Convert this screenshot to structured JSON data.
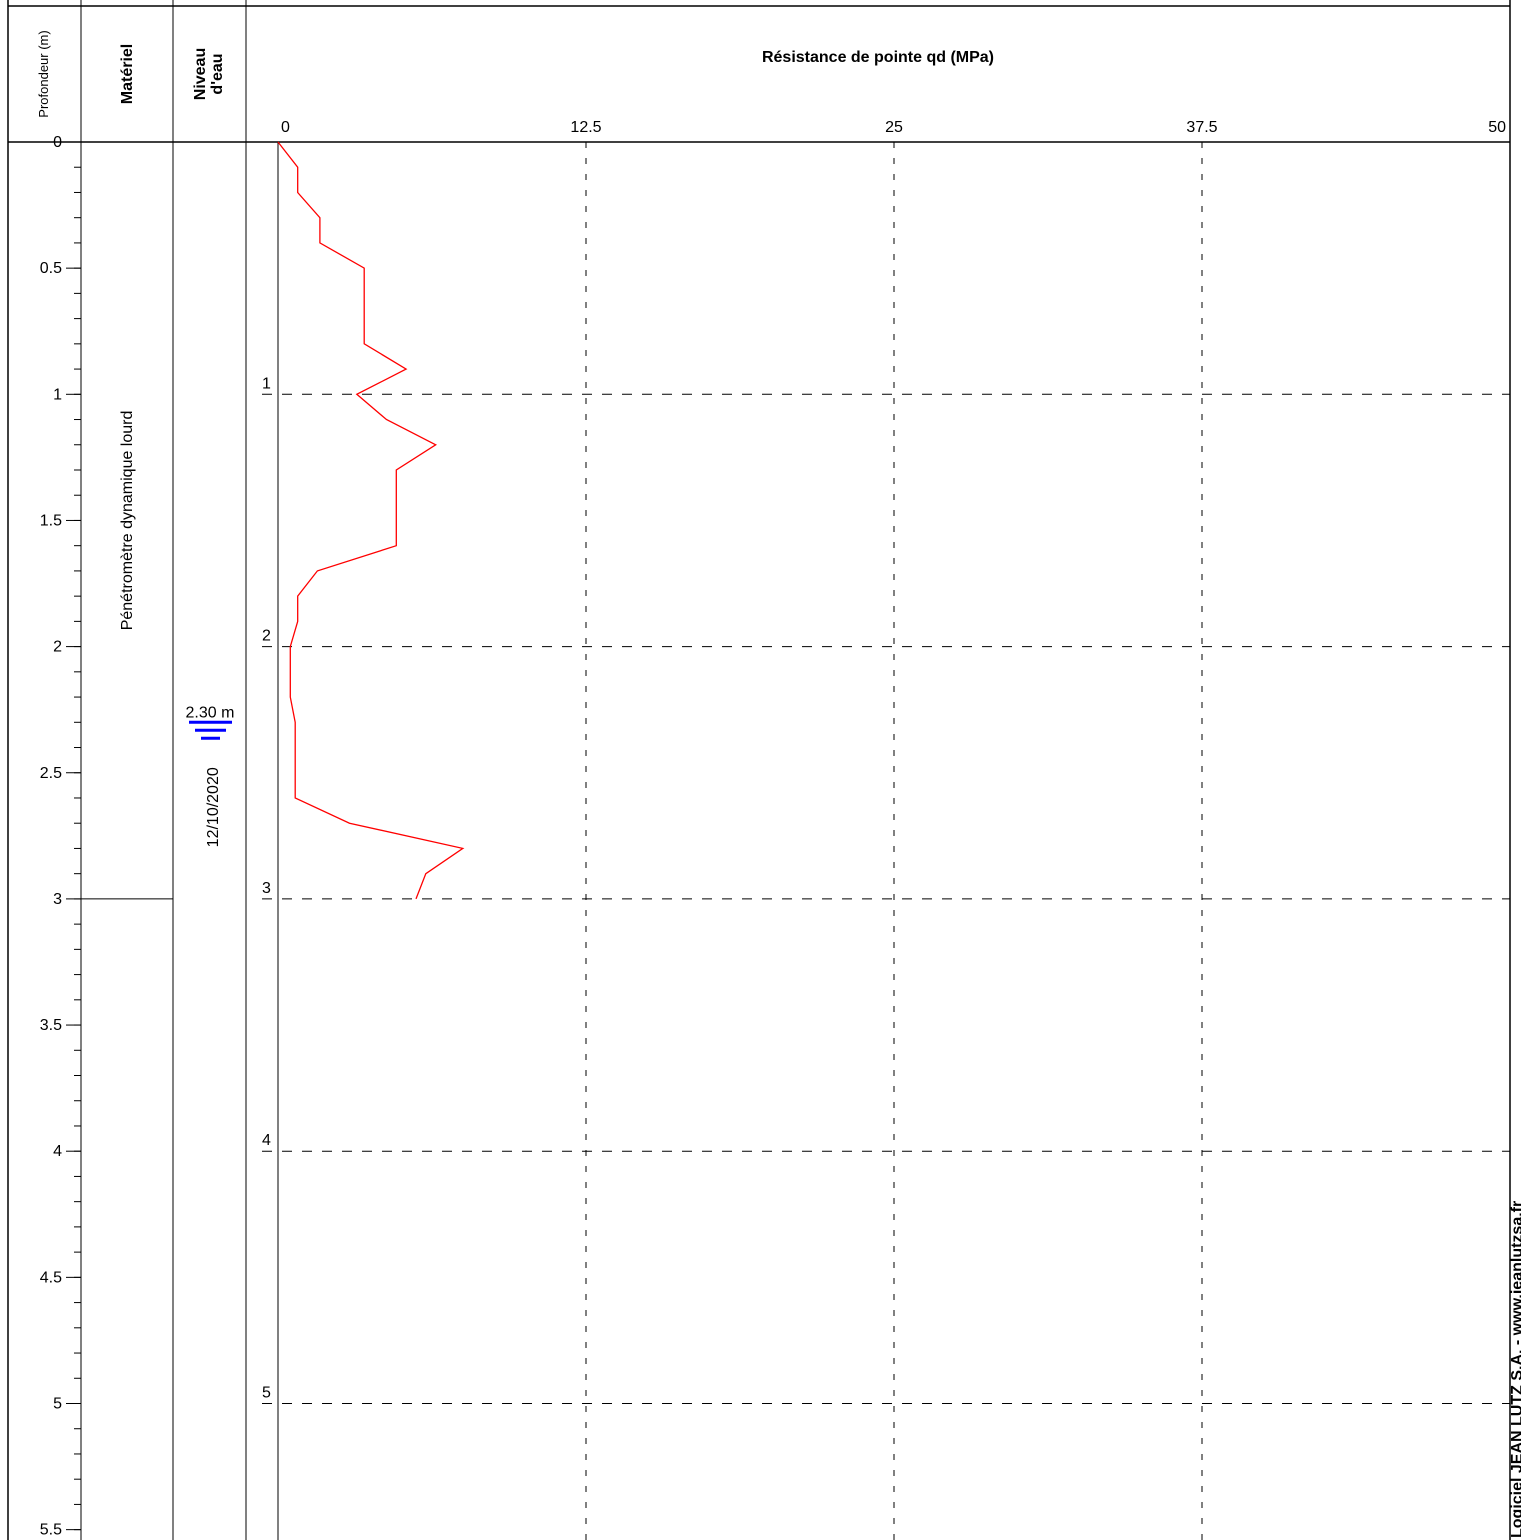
{
  "headers": {
    "depth": "Profondeur (m)",
    "material": "Matériel",
    "water_line1": "Niveau",
    "water_line2": "d'eau",
    "chart_title": "Résistance de pointe qd (MPa)"
  },
  "material": {
    "label": "Pénétromètre dynamique lourd",
    "from_m": 0,
    "to_m": 3
  },
  "water": {
    "depth_m": 2.3,
    "level_label": "2.30 m",
    "date": "12/10/2020",
    "symbol_color": "#0000ff"
  },
  "watermark": "Logiciel JEAN LUTZ S.A. - www.jeanlutzsa.fr",
  "depth_axis": {
    "ticks": [
      0,
      0.5,
      1,
      1.5,
      2,
      2.5,
      3,
      3.5,
      4,
      4.5,
      5,
      5.5
    ],
    "tick_labels": [
      "0",
      "0.5",
      "1",
      "1.5",
      "2",
      "2.5",
      "3",
      "3.5",
      "4",
      "4.5",
      "5",
      "5.5"
    ],
    "minor_step": 0.1
  },
  "chart_data": {
    "type": "line",
    "title": "Résistance de pointe qd (MPa)",
    "xlabel": "Résistance de pointe qd (MPa)",
    "ylabel": "Profondeur (m)",
    "xlim": [
      0,
      50
    ],
    "ylim": [
      0,
      5.6
    ],
    "x_ticks": [
      0,
      12.5,
      25,
      37.5,
      50
    ],
    "x_tick_labels": [
      "0",
      "12.5",
      "25",
      "37.5",
      "50"
    ],
    "depth_grid": [
      1,
      2,
      3,
      4,
      5
    ],
    "depth_grid_labels": [
      "1",
      "2",
      "3",
      "4",
      "5"
    ],
    "grid": true,
    "series": [
      {
        "color": "#ff0000",
        "depth": [
          0,
          0.1,
          0.1,
          0.2,
          0.2,
          0.3,
          0.3,
          0.4,
          0.5,
          0.5,
          0.6,
          0.7,
          0.8,
          0.9,
          1.0,
          1.1,
          1.2,
          1.3,
          1.4,
          1.5,
          1.6,
          1.7,
          1.8,
          1.9,
          2.0,
          2.1,
          2.2,
          2.3,
          2.4,
          2.5,
          2.6,
          2.7,
          2.8,
          2.9,
          3.0
        ],
        "qd": [
          0,
          0.8,
          0.8,
          0.8,
          0.8,
          1.7,
          1.7,
          1.7,
          3.5,
          3.5,
          3.5,
          3.5,
          3.5,
          5.2,
          3.2,
          4.4,
          6.4,
          4.8,
          4.8,
          4.8,
          4.8,
          1.6,
          0.8,
          0.8,
          0.5,
          0.5,
          0.5,
          0.7,
          0.7,
          0.7,
          0.7,
          2.9,
          7.5,
          6.0,
          5.6
        ]
      }
    ]
  }
}
